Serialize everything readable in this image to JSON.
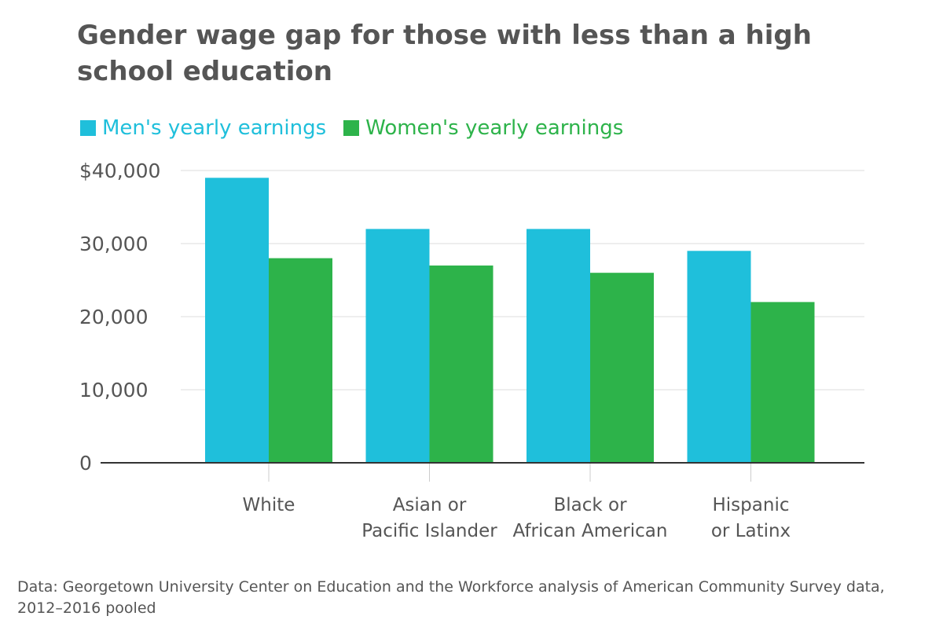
{
  "chart_data": {
    "type": "bar",
    "title": "Gender wage gap for those with less than a high school education",
    "categories": [
      [
        "White"
      ],
      [
        "Asian or",
        "Pacific Islander"
      ],
      [
        "Black or",
        "African American"
      ],
      [
        "Hispanic",
        "or Latinx"
      ]
    ],
    "series": [
      {
        "name": "Men's yearly earnings",
        "color": "#1fbfdb",
        "values": [
          39000,
          32000,
          32000,
          29000
        ]
      },
      {
        "name": "Women's yearly earnings",
        "color": "#2db34a",
        "values": [
          28000,
          27000,
          26000,
          22000
        ]
      }
    ],
    "yticks": [
      {
        "value": 0,
        "label": "0"
      },
      {
        "value": 10000,
        "label": "10,000"
      },
      {
        "value": 20000,
        "label": "20,000"
      },
      {
        "value": 30000,
        "label": "30,000"
      },
      {
        "value": 40000,
        "label": "$40,000"
      }
    ],
    "ylim": [
      0,
      40000
    ],
    "xlabel": "",
    "ylabel": "",
    "grid": true,
    "legend_position": "top-left",
    "source": "Data: Georgetown University Center on Education and the Workforce analysis of American Community Survey data, 2012–2016 pooled"
  }
}
